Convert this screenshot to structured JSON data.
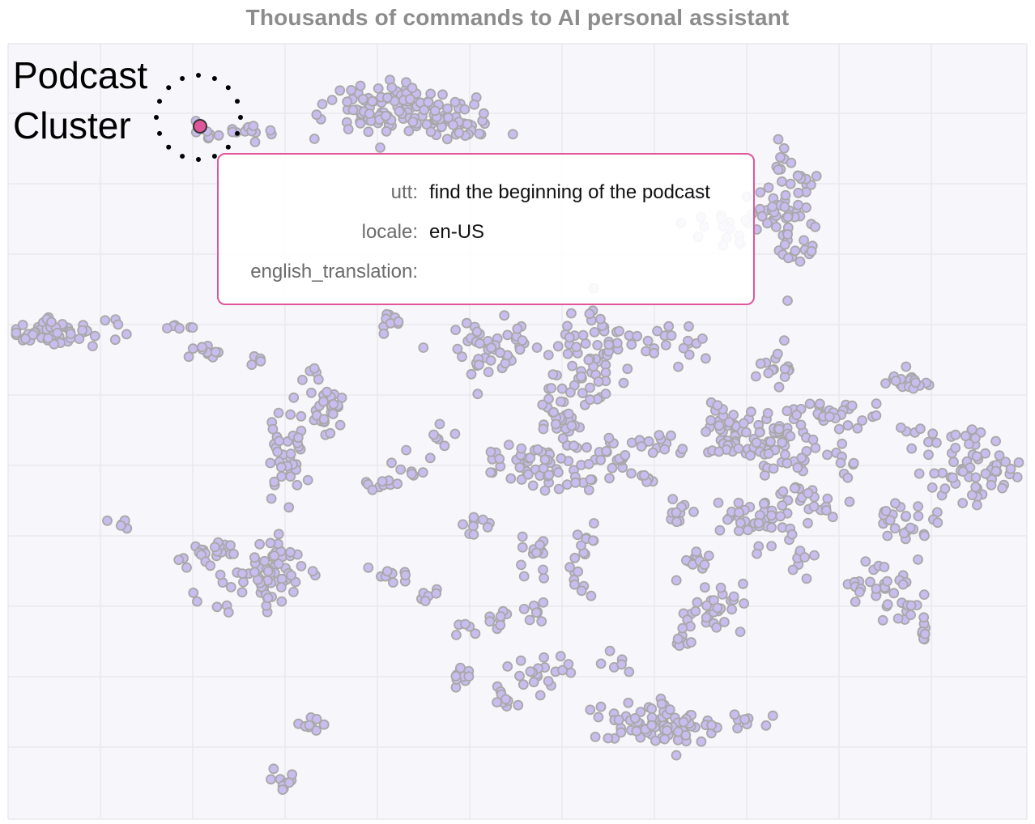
{
  "chart_data": {
    "type": "scatter",
    "title": "Thousands of commands to AI personal assistant",
    "grid": true,
    "point_color": "#c9bdf0",
    "point_stroke": "#a8a8a8",
    "highlight_color": "#e0569a",
    "grid_color": "#e8e8ee",
    "tooltip_border_color": "#e0569a",
    "annotation": {
      "line1": "Podcast",
      "line2": "Cluster"
    },
    "tooltip": {
      "rows": [
        {
          "key": "utt:",
          "value": "find the beginning of the podcast"
        },
        {
          "key": "locale:",
          "value": "en-US"
        },
        {
          "key": "english_translation:",
          "value": ""
        }
      ]
    },
    "highlighted_point": {
      "x": 247,
      "y": 156
    }
  }
}
